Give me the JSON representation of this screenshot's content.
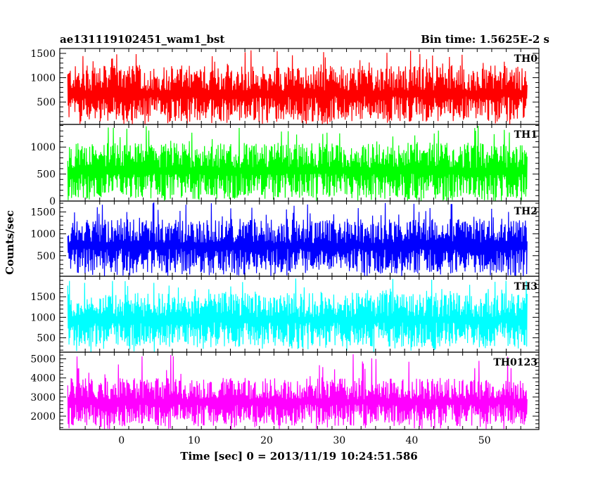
{
  "header": {
    "title": "ae131119102451_wam1_bst",
    "bin_time": "Bin time: 1.5625E-2 s"
  },
  "axes": {
    "ylabel": "Counts/sec",
    "xlabel": "Time [sec] 0 = 2013/11/19 10:24:51.586"
  },
  "chart_data": {
    "type": "line",
    "title": "ae131119102451_wam1_bst",
    "xlabel": "Time [sec] 0 = 2013/11/19 10:24:51.586",
    "ylabel": "Counts/sec",
    "xlim": [
      -8.5,
      57.5
    ],
    "x_data_range": [
      -7.4,
      55.9
    ],
    "x_ticks": [
      0,
      10,
      20,
      30,
      40,
      50
    ],
    "x_tick_labels": [
      "0",
      "10",
      "20",
      "30",
      "40",
      "50"
    ],
    "panels": [
      {
        "name": "TH0",
        "color": "#ff0000",
        "ylim": [
          40,
          1600
        ],
        "y_ticks": [
          500,
          1000,
          1500
        ],
        "y_tick_labels": [
          "500",
          "1000",
          "1500"
        ],
        "base_min": 100,
        "base_max": 1250,
        "spike_max": 1600
      },
      {
        "name": "TH1",
        "color": "#00ff00",
        "ylim": [
          0,
          1420
        ],
        "y_ticks": [
          0,
          500,
          1000
        ],
        "y_tick_labels": [
          "0",
          "500",
          "1000"
        ],
        "base_min": 40,
        "base_max": 1080,
        "spike_max": 1400
      },
      {
        "name": "TH2",
        "color": "#0000ff",
        "ylim": [
          30,
          1750
        ],
        "y_ticks": [
          500,
          1000,
          1500
        ],
        "y_tick_labels": [
          "500",
          "1000",
          "1500"
        ],
        "base_min": 100,
        "base_max": 1350,
        "spike_max": 1720
      },
      {
        "name": "TH3",
        "color": "#00ffff",
        "ylim": [
          150,
          2000
        ],
        "y_ticks": [
          500,
          1000,
          1500
        ],
        "y_tick_labels": [
          "500",
          "1000",
          "1500"
        ],
        "base_min": 280,
        "base_max": 1600,
        "spike_max": 1950
      },
      {
        "name": "TH0123",
        "color": "#ff00ff",
        "ylim": [
          1300,
          5350
        ],
        "y_ticks": [
          2000,
          3000,
          4000,
          5000
        ],
        "y_tick_labels": [
          "2000",
          "3000",
          "4000",
          "5000"
        ],
        "base_min": 1500,
        "base_max": 4000,
        "spike_max": 5250
      }
    ]
  }
}
